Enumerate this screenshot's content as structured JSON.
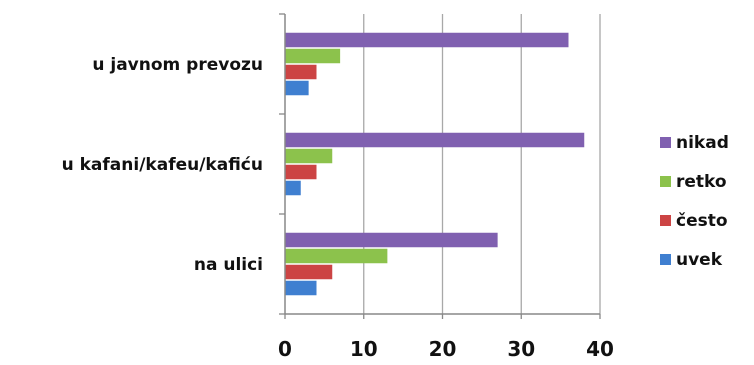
{
  "chart_data": {
    "type": "bar",
    "orientation": "horizontal",
    "categories": [
      "u javnom prevozu",
      "u kafani/kafeu/kafiću",
      "na ulici"
    ],
    "series": [
      {
        "name": "uvek",
        "color": "#3f7fd0",
        "values": [
          3,
          2,
          4
        ]
      },
      {
        "name": "često",
        "color": "#cc4444",
        "values": [
          4,
          4,
          6
        ]
      },
      {
        "name": "retko",
        "color": "#8cc24c",
        "values": [
          7,
          6,
          13
        ]
      },
      {
        "name": "nikad",
        "color": "#8060b0",
        "values": [
          36,
          38,
          27
        ]
      }
    ],
    "xlim": [
      0,
      40
    ],
    "x_ticks": [
      "0",
      "10",
      "20",
      "30",
      "40"
    ],
    "grid": "vertical",
    "legend_position": "right",
    "legend_order": [
      "nikad",
      "retko",
      "često",
      "uvek"
    ]
  }
}
